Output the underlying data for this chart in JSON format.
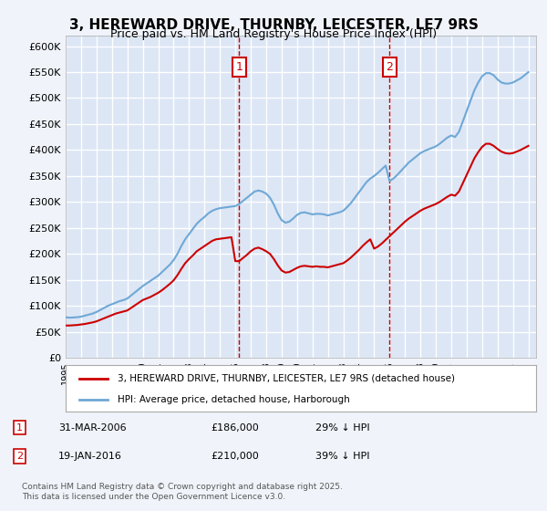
{
  "title": "3, HEREWARD DRIVE, THURNBY, LEICESTER, LE7 9RS",
  "subtitle": "Price paid vs. HM Land Registry's House Price Index (HPI)",
  "xlabel": "",
  "ylabel": "",
  "background_color": "#e8eef8",
  "plot_bg_color": "#dce6f5",
  "grid_color": "#ffffff",
  "sale1_date": "31-MAR-2006",
  "sale1_price": 186000,
  "sale1_label": "1",
  "sale1_hpi_diff": "29% ↓ HPI",
  "sale2_date": "19-JAN-2016",
  "sale2_price": 210000,
  "sale2_label": "2",
  "sale2_hpi_diff": "39% ↓ HPI",
  "hpi_line_color": "#6fa8d6",
  "price_line_color": "#cc0000",
  "vline_color": "#cc0000",
  "ylim": [
    0,
    620000
  ],
  "yticks": [
    0,
    50000,
    100000,
    150000,
    200000,
    250000,
    300000,
    350000,
    400000,
    450000,
    500000,
    550000,
    600000
  ],
  "legend_label_price": "3, HEREWARD DRIVE, THURNBY, LEICESTER, LE7 9RS (detached house)",
  "legend_label_hpi": "HPI: Average price, detached house, Harborough",
  "footer": "Contains HM Land Registry data © Crown copyright and database right 2025.\nThis data is licensed under the Open Government Licence v3.0.",
  "hpi_data": {
    "years": [
      1995.0,
      1995.25,
      1995.5,
      1995.75,
      1996.0,
      1996.25,
      1996.5,
      1996.75,
      1997.0,
      1997.25,
      1997.5,
      1997.75,
      1998.0,
      1998.25,
      1998.5,
      1998.75,
      1999.0,
      1999.25,
      1999.5,
      1999.75,
      2000.0,
      2000.25,
      2000.5,
      2000.75,
      2001.0,
      2001.25,
      2001.5,
      2001.75,
      2002.0,
      2002.25,
      2002.5,
      2002.75,
      2003.0,
      2003.25,
      2003.5,
      2003.75,
      2004.0,
      2004.25,
      2004.5,
      2004.75,
      2005.0,
      2005.25,
      2005.5,
      2005.75,
      2006.0,
      2006.25,
      2006.5,
      2006.75,
      2007.0,
      2007.25,
      2007.5,
      2007.75,
      2008.0,
      2008.25,
      2008.5,
      2008.75,
      2009.0,
      2009.25,
      2009.5,
      2009.75,
      2010.0,
      2010.25,
      2010.5,
      2010.75,
      2011.0,
      2011.25,
      2011.5,
      2011.75,
      2012.0,
      2012.25,
      2012.5,
      2012.75,
      2013.0,
      2013.25,
      2013.5,
      2013.75,
      2014.0,
      2014.25,
      2014.5,
      2014.75,
      2015.0,
      2015.25,
      2015.5,
      2015.75,
      2016.0,
      2016.25,
      2016.5,
      2016.75,
      2017.0,
      2017.25,
      2017.5,
      2017.75,
      2018.0,
      2018.25,
      2018.5,
      2018.75,
      2019.0,
      2019.25,
      2019.5,
      2019.75,
      2020.0,
      2020.25,
      2020.5,
      2020.75,
      2021.0,
      2021.25,
      2021.5,
      2021.75,
      2022.0,
      2022.25,
      2022.5,
      2022.75,
      2023.0,
      2023.25,
      2023.5,
      2023.75,
      2024.0,
      2024.25,
      2024.5,
      2024.75,
      2025.0
    ],
    "values": [
      78000,
      77000,
      77500,
      78000,
      79000,
      81000,
      83000,
      85000,
      88000,
      92000,
      96000,
      100000,
      103000,
      106000,
      109000,
      111000,
      114000,
      120000,
      126000,
      132000,
      138000,
      143000,
      148000,
      153000,
      158000,
      165000,
      172000,
      179000,
      188000,
      200000,
      215000,
      228000,
      238000,
      248000,
      258000,
      265000,
      271000,
      278000,
      283000,
      286000,
      288000,
      289000,
      290000,
      291000,
      292000,
      296000,
      302000,
      308000,
      314000,
      320000,
      322000,
      320000,
      316000,
      308000,
      295000,
      278000,
      265000,
      260000,
      262000,
      268000,
      275000,
      279000,
      280000,
      278000,
      276000,
      277000,
      277000,
      276000,
      274000,
      276000,
      278000,
      280000,
      283000,
      290000,
      298000,
      308000,
      318000,
      328000,
      338000,
      345000,
      350000,
      356000,
      363000,
      370000,
      340000,
      345000,
      352000,
      360000,
      368000,
      376000,
      382000,
      388000,
      394000,
      398000,
      401000,
      404000,
      407000,
      412000,
      418000,
      424000,
      428000,
      425000,
      435000,
      455000,
      475000,
      495000,
      515000,
      530000,
      542000,
      548000,
      548000,
      544000,
      536000,
      530000,
      528000,
      528000,
      530000,
      534000,
      538000,
      544000,
      550000
    ]
  },
  "price_data": {
    "years": [
      1995.0,
      1995.25,
      1995.5,
      1995.75,
      1996.0,
      1996.25,
      1996.5,
      1996.75,
      1997.0,
      1997.25,
      1997.5,
      1997.75,
      1998.0,
      1998.25,
      1998.5,
      1998.75,
      1999.0,
      1999.25,
      1999.5,
      1999.75,
      2000.0,
      2000.25,
      2000.5,
      2000.75,
      2001.0,
      2001.25,
      2001.5,
      2001.75,
      2002.0,
      2002.25,
      2002.5,
      2002.75,
      2003.0,
      2003.25,
      2003.5,
      2003.75,
      2004.0,
      2004.25,
      2004.5,
      2004.75,
      2005.0,
      2005.25,
      2005.5,
      2005.75,
      2006.0,
      2006.25,
      2006.5,
      2006.75,
      2007.0,
      2007.25,
      2007.5,
      2007.75,
      2008.0,
      2008.25,
      2008.5,
      2008.75,
      2009.0,
      2009.25,
      2009.5,
      2009.75,
      2010.0,
      2010.25,
      2010.5,
      2010.75,
      2011.0,
      2011.25,
      2011.5,
      2011.75,
      2012.0,
      2012.25,
      2012.5,
      2012.75,
      2013.0,
      2013.25,
      2013.5,
      2013.75,
      2014.0,
      2014.25,
      2014.5,
      2014.75,
      2015.0,
      2015.25,
      2015.5,
      2015.75,
      2016.0,
      2016.25,
      2016.5,
      2016.75,
      2017.0,
      2017.25,
      2017.5,
      2017.75,
      2018.0,
      2018.25,
      2018.5,
      2018.75,
      2019.0,
      2019.25,
      2019.5,
      2019.75,
      2020.0,
      2020.25,
      2020.5,
      2020.75,
      2021.0,
      2021.25,
      2021.5,
      2021.75,
      2022.0,
      2022.25,
      2022.5,
      2022.75,
      2023.0,
      2023.25,
      2023.5,
      2023.75,
      2024.0,
      2024.25,
      2024.5,
      2024.75,
      2025.0
    ],
    "values": [
      62000,
      62000,
      62500,
      63000,
      64000,
      65000,
      66500,
      68000,
      70000,
      73000,
      76000,
      79000,
      82000,
      85000,
      87000,
      89000,
      91000,
      96000,
      101000,
      106000,
      111000,
      114000,
      117000,
      121000,
      125000,
      130000,
      136000,
      142000,
      149000,
      159000,
      171000,
      182000,
      190000,
      197000,
      205000,
      210000,
      215000,
      220000,
      225000,
      228000,
      229000,
      230000,
      231000,
      232000,
      186000,
      186000,
      192000,
      198000,
      205000,
      210000,
      212000,
      209000,
      205000,
      200000,
      190000,
      178000,
      168000,
      164000,
      165000,
      169000,
      173000,
      176000,
      177000,
      176000,
      175000,
      176000,
      175000,
      175000,
      174000,
      176000,
      178000,
      180000,
      182000,
      187000,
      193000,
      200000,
      207000,
      215000,
      222000,
      228000,
      210000,
      214000,
      220000,
      227000,
      234000,
      241000,
      248000,
      255000,
      262000,
      268000,
      273000,
      278000,
      283000,
      287000,
      290000,
      293000,
      296000,
      300000,
      305000,
      310000,
      314000,
      312000,
      320000,
      336000,
      352000,
      368000,
      384000,
      396000,
      406000,
      412000,
      412000,
      408000,
      402000,
      397000,
      394000,
      393000,
      394000,
      397000,
      400000,
      404000,
      408000
    ]
  },
  "sale1_year": 2006.25,
  "sale2_year": 2016.0
}
